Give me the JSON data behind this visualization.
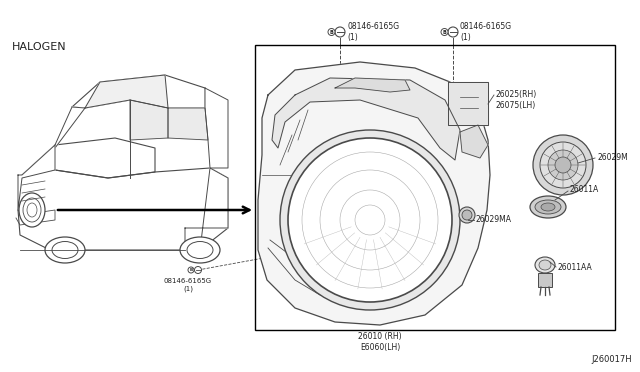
{
  "title": "HALOGEN",
  "diagram_id": "J260017H",
  "background_color": "#ffffff",
  "line_color": "#4a4a4a",
  "text_color": "#222222",
  "labels": {
    "bolt1": "08146-6165G\n(1)",
    "bolt2": "08146-6165G\n(1)",
    "bolt3": "08146-6165G\n(1)",
    "part1": "26025(RH)\n26075(LH)",
    "part2": "26029M",
    "part3": "26011A",
    "part4": "26029MA",
    "part5": "26011AA",
    "part6": "26010 (RH)\nE6060(LH)",
    "diagram_id": "J260017H"
  },
  "figsize": [
    6.4,
    3.72
  ],
  "dpi": 100
}
